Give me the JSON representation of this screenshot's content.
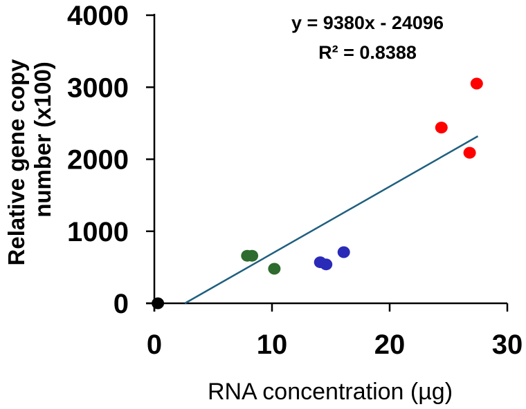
{
  "chart_data": {
    "type": "scatter",
    "title": "",
    "xlabel": "RNA concentration (µg)",
    "ylabel_lines": [
      "Relative gene copy",
      "number (x100)"
    ],
    "xlim": [
      0,
      30
    ],
    "ylim": [
      0,
      4000
    ],
    "xticks": [
      0,
      10,
      20,
      30
    ],
    "yticks": [
      0,
      1000,
      2000,
      3000,
      4000
    ],
    "xtick_labels": [
      "0",
      "10",
      "20",
      "30"
    ],
    "ytick_labels": [
      "0",
      "1000",
      "2000",
      "3000",
      "4000"
    ],
    "grid": false,
    "legend": "none",
    "series": [
      {
        "name": "black",
        "color": "#000000",
        "points": [
          {
            "x": 0.3,
            "y": 0
          }
        ]
      },
      {
        "name": "green",
        "color": "#2e6b2e",
        "points": [
          {
            "x": 7.9,
            "y": 660
          },
          {
            "x": 8.3,
            "y": 660
          },
          {
            "x": 10.2,
            "y": 480
          }
        ]
      },
      {
        "name": "blue",
        "color": "#2a2ab8",
        "points": [
          {
            "x": 14.1,
            "y": 570
          },
          {
            "x": 14.6,
            "y": 540
          },
          {
            "x": 16.1,
            "y": 710
          }
        ]
      },
      {
        "name": "red",
        "color": "#ff0000",
        "points": [
          {
            "x": 24.4,
            "y": 2440
          },
          {
            "x": 26.8,
            "y": 2090
          },
          {
            "x": 27.4,
            "y": 3050
          }
        ]
      }
    ],
    "trendline": {
      "color": "#1f5f7f",
      "x_start": 2.6,
      "y_start": 0,
      "x_end": 27.5,
      "y_end": 2320
    },
    "annotations": [
      "y = 9380x - 24096",
      "R² = 0.8388"
    ]
  }
}
